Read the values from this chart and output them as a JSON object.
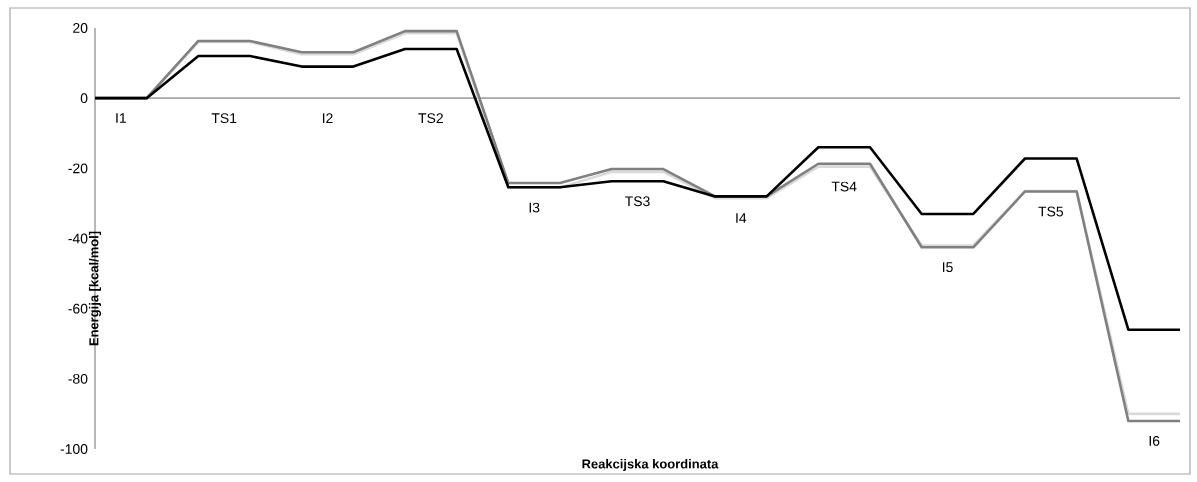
{
  "chart_data": {
    "type": "line",
    "xlabel": "Reakcijska koordinata",
    "ylabel": "Energija [kcal/mol]",
    "categories": [
      null,
      null,
      null,
      null,
      null,
      null,
      null,
      null,
      null,
      null,
      null,
      null,
      null,
      null,
      null,
      null,
      null,
      null,
      null,
      null,
      null,
      null
    ],
    "series": [
      {
        "color": "#d9d9d9",
        "values": [
          0,
          0,
          16,
          16,
          12.5,
          12.5,
          18.5,
          18.5,
          -25.5,
          -25.5,
          -21,
          -21,
          -28.5,
          -28.5,
          -19.5,
          -19.5,
          -42,
          -42,
          -26.5,
          -26.5,
          -90,
          -90
        ]
      },
      {
        "color": "#808080",
        "values": [
          0,
          0,
          16.3,
          16.3,
          13.1,
          13.1,
          19.1,
          19.1,
          -24.2,
          -24.2,
          -20.2,
          -20.2,
          -28,
          -28,
          -18.7,
          -18.7,
          -42.5,
          -42.5,
          -26.6,
          -26.6,
          -92,
          -92
        ]
      },
      {
        "color": "#000000",
        "values": [
          0,
          0,
          12,
          12,
          9,
          9,
          14,
          14,
          -25.4,
          -25.4,
          -23.7,
          -23.7,
          -28,
          -28,
          -14,
          -14,
          -33,
          -33,
          -17.2,
          -17.2,
          -66,
          -66
        ]
      }
    ],
    "ylim": [
      -100,
      20
    ],
    "yticks": [
      -100,
      -80,
      -60,
      -40,
      -20,
      0,
      20
    ],
    "annotations": [
      "I1",
      "TS1",
      "I2",
      "TS2",
      "I3",
      "TS3",
      "I4",
      "TS4",
      "I5",
      "TS5",
      "I6"
    ]
  }
}
